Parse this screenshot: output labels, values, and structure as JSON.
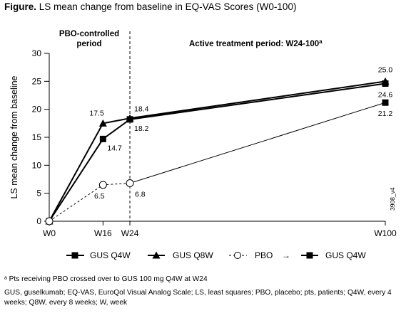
{
  "figure": {
    "label": "Figure.",
    "title": "LS mean change from baseline in EQ-VAS Scores (W0-100)"
  },
  "chart_data": {
    "type": "line",
    "ylabel": "LS mean change from baseline",
    "xlabel": "",
    "ylim": [
      0,
      30
    ],
    "yticks": [
      0,
      5,
      10,
      15,
      20,
      25,
      30
    ],
    "x_ticks": [
      {
        "label": "W0",
        "week": 0
      },
      {
        "label": "W16",
        "week": 16
      },
      {
        "label": "W24",
        "week": 24
      },
      {
        "label": "W100",
        "week": 100
      }
    ],
    "period_labels": {
      "pbo_line1": "PBO-controlled",
      "pbo_line2": "period",
      "active": "Active treatment period: W24-100",
      "active_sup": "a"
    },
    "vertical_line_week": 24,
    "code": "3908_v4",
    "series": [
      {
        "name": "GUS Q4W",
        "marker": "square",
        "line": "solid",
        "filled": true,
        "points": [
          {
            "week": 0,
            "value": 0
          },
          {
            "week": 16,
            "value": 14.7,
            "label": "14.7"
          },
          {
            "week": 24,
            "value": 18.2,
            "label": "18.2"
          },
          {
            "week": 100,
            "value": 24.6,
            "label": "24.6"
          }
        ]
      },
      {
        "name": "GUS Q8W",
        "marker": "triangle",
        "line": "solid",
        "filled": true,
        "points": [
          {
            "week": 0,
            "value": 0
          },
          {
            "week": 16,
            "value": 17.5,
            "label": "17.5"
          },
          {
            "week": 24,
            "value": 18.4,
            "label": "18.4"
          },
          {
            "week": 100,
            "value": 25.0,
            "label": "25.0"
          }
        ]
      },
      {
        "name": "PBO",
        "marker": "circle",
        "line": "dashed",
        "filled": false,
        "points": [
          {
            "week": 0,
            "value": 0
          },
          {
            "week": 16,
            "value": 6.5,
            "label": "6.5"
          },
          {
            "week": 24,
            "value": 6.8,
            "label": "6.8"
          }
        ]
      },
      {
        "name": "GUS Q4W",
        "marker": "square",
        "line": "thin",
        "filled": true,
        "points": [
          {
            "week": 24,
            "value": 6.8
          },
          {
            "week": 100,
            "value": 21.2,
            "label": "21.2"
          }
        ]
      }
    ],
    "legend": {
      "placement": "bottom",
      "items": [
        "GUS Q4W",
        "GUS Q8W",
        "PBO",
        "GUS Q4W"
      ],
      "arrow": "→"
    }
  },
  "footnotes": {
    "a": "ᵃ Pts receiving PBO crossed over to GUS 100 mg Q4W at W24",
    "abbrev": "GUS, guselkumab; EQ-VAS, EuroQol Visual Analog Scale; LS, least squares; PBO, placebo; pts, patients; Q4W, every 4 weeks; Q8W, every 8 weeks; W, week"
  }
}
